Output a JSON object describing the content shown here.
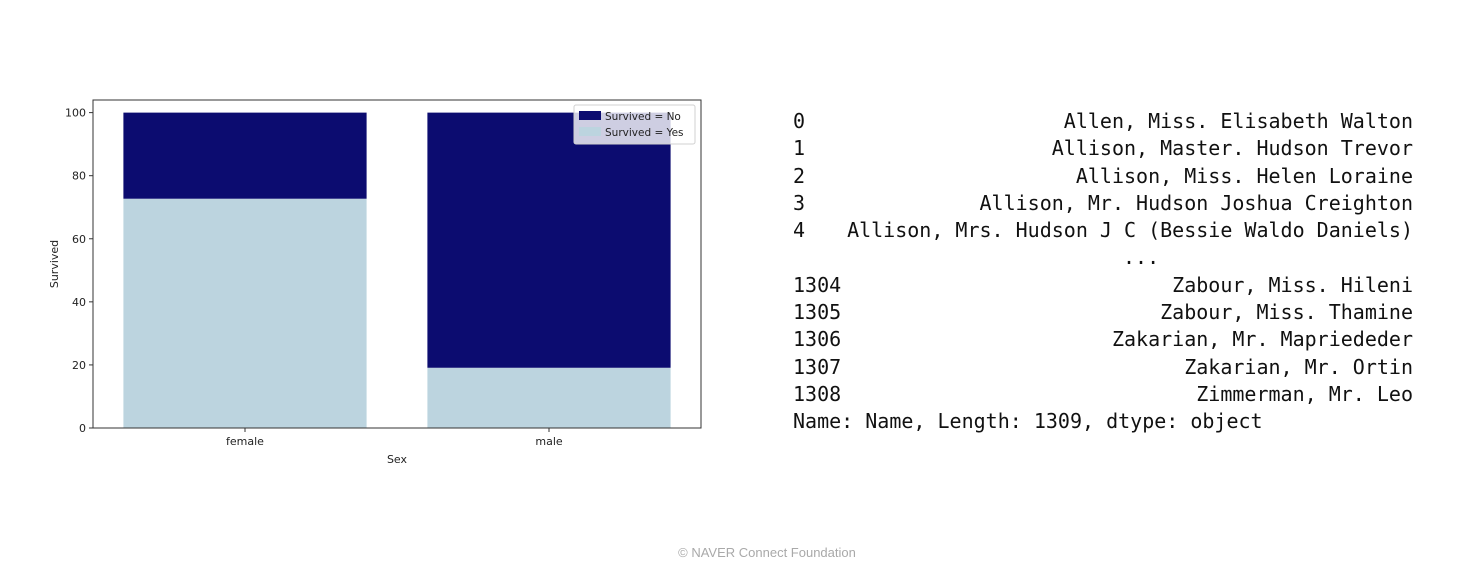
{
  "chart_data": {
    "type": "bar",
    "stacked": true,
    "categories": [
      "female",
      "male"
    ],
    "series": [
      {
        "name": "Survived = No",
        "values": [
          27.3,
          80.9
        ],
        "color": "#0c0c70"
      },
      {
        "name": "Survived = Yes",
        "values": [
          72.7,
          19.1
        ],
        "color": "#bcd4df"
      }
    ],
    "xlabel": "Sex",
    "ylabel": "Survived",
    "ylim": [
      0,
      104
    ],
    "yticks": [
      0,
      20,
      40,
      60,
      80,
      100
    ],
    "grid": false,
    "legend": "top-right"
  },
  "series_output": {
    "rows": [
      {
        "index": "0",
        "name": "Allen, Miss. Elisabeth Walton"
      },
      {
        "index": "1",
        "name": "Allison, Master. Hudson Trevor"
      },
      {
        "index": "2",
        "name": "Allison, Miss. Helen Loraine"
      },
      {
        "index": "3",
        "name": "Allison, Mr. Hudson Joshua Creighton"
      },
      {
        "index": "4",
        "name": "Allison, Mrs. Hudson J C (Bessie Waldo Daniels)"
      }
    ],
    "ellipsis": "...",
    "tail_rows": [
      {
        "index": "1304",
        "name": "Zabour, Miss. Hileni"
      },
      {
        "index": "1305",
        "name": "Zabour, Miss. Thamine"
      },
      {
        "index": "1306",
        "name": "Zakarian, Mr. Mapriededer"
      },
      {
        "index": "1307",
        "name": "Zakarian, Mr. Ortin"
      },
      {
        "index": "1308",
        "name": "Zimmerman, Mr. Leo"
      }
    ],
    "footer": "Name: Name, Length: 1309, dtype: object"
  },
  "copyright": "© NAVER Connect Foundation"
}
